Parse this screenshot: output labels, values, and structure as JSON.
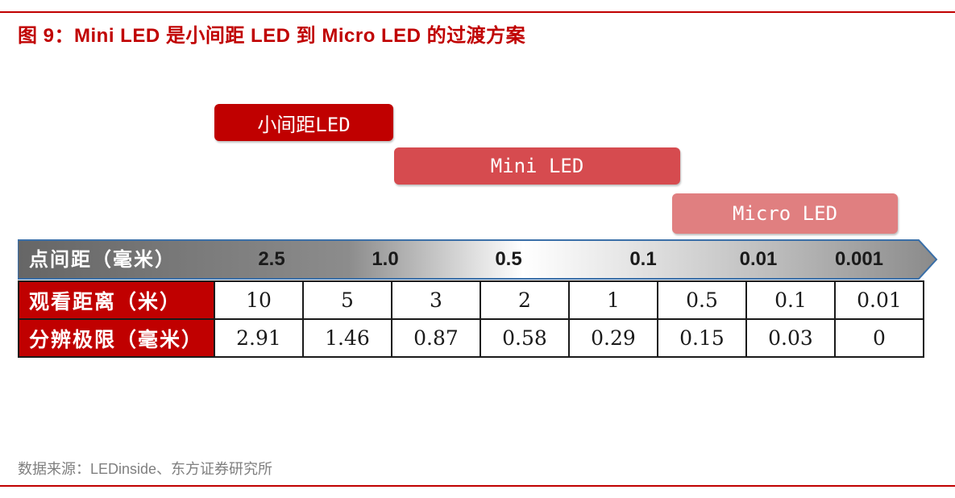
{
  "title": "图 9：Mini LED 是小间距 LED 到 Micro LED 的过渡方案",
  "pills": {
    "small_pitch": "小间距LED",
    "mini": "Mini LED",
    "micro": "Micro LED"
  },
  "colors": {
    "brand_red": "#c00000",
    "mini_red": "#d64b4f",
    "micro_pink": "#e07f80"
  },
  "pitch_row": {
    "label": "点间距（毫米）",
    "values": [
      "2.5",
      "1.0",
      "0.5",
      "0.1",
      "0.01",
      "0.001"
    ]
  },
  "table": {
    "rows": [
      {
        "label": "观看距离（米）",
        "values": [
          "10",
          "5",
          "3",
          "2",
          "1",
          "0.5",
          "0.1",
          "0.01"
        ]
      },
      {
        "label": "分辨极限（毫米）",
        "values": [
          "2.91",
          "1.46",
          "0.87",
          "0.58",
          "0.29",
          "0.15",
          "0.03",
          "0"
        ]
      }
    ]
  },
  "source": "数据来源：LEDinside、东方证券研究所"
}
